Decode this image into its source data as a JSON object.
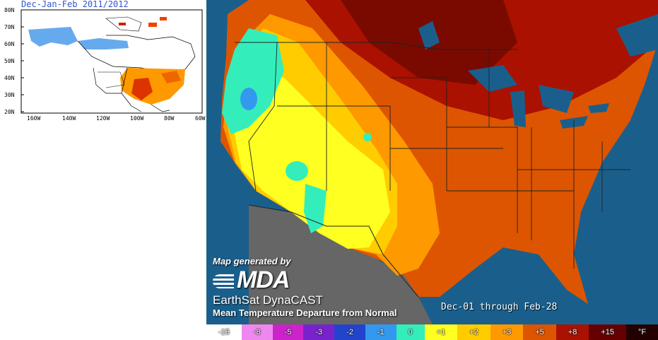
{
  "inset": {
    "title": "Dec-Jan-Feb 2011/2012",
    "lat_labels": [
      "80N",
      "70N",
      "60N",
      "50N",
      "40N",
      "30N",
      "20N"
    ],
    "lon_labels": [
      "160W",
      "140W",
      "120W",
      "100W",
      "80W",
      "60W"
    ]
  },
  "credit": {
    "generated": "Map generated by",
    "logo": "MDA",
    "product": "EarthSat DynaCAST",
    "description": "Mean Temperature Departure from Normal"
  },
  "period": "Dec-01 through Feb-28",
  "legend": {
    "labels": [
      "-15",
      "-8",
      "-5",
      "-3",
      "-2",
      "-1",
      "0",
      "+1",
      "+2",
      "+3",
      "+5",
      "+8",
      "+15",
      "°F"
    ],
    "colors": [
      "#ffffff",
      "#ee88ee",
      "#cc22cc",
      "#7722cc",
      "#2244cc",
      "#3399ee",
      "#33eebb",
      "#ffff22",
      "#ffcc00",
      "#ff9900",
      "#dd5500",
      "#aa1100",
      "#660000",
      "#220000"
    ]
  },
  "map_colors": {
    "ocean": "#1a5f8c",
    "mexico": "#666666",
    "lake": "#1a5f8c"
  }
}
